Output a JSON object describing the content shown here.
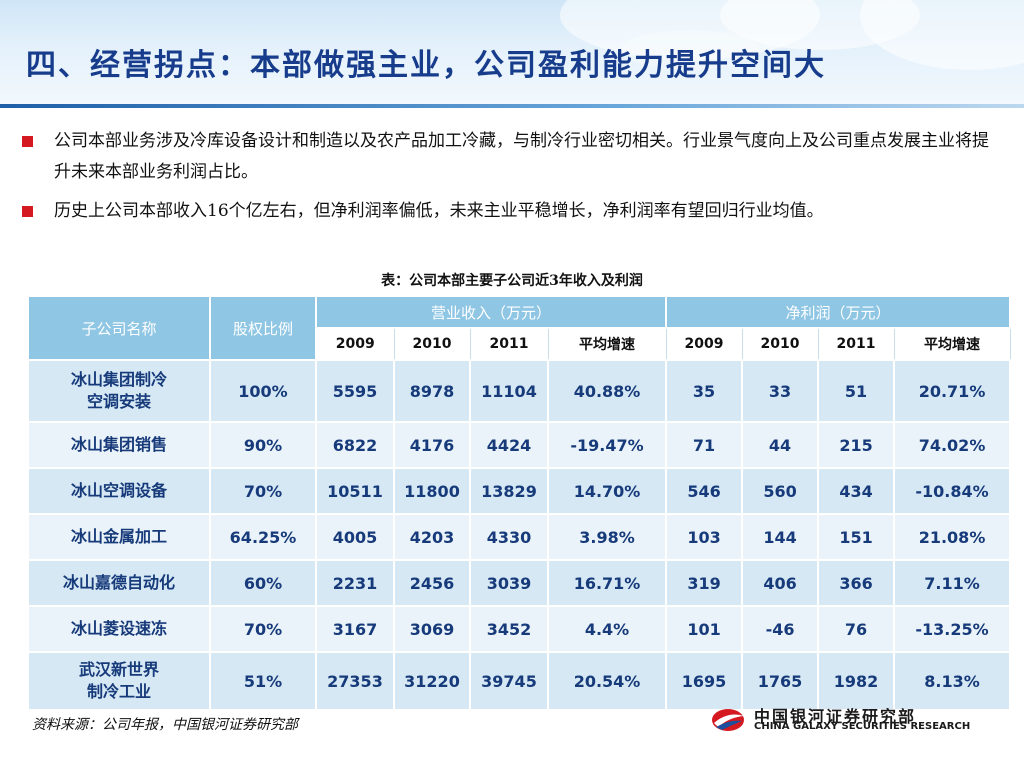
{
  "header": {
    "title": "四、经营拐点：本部做强主业，公司盈利能力提升空间大"
  },
  "bullets": [
    "公司本部业务涉及冷库设备设计和制造以及农产品加工冷藏，与制冷行业密切相关。行业景气度向上及公司重点发展主业将提升未来本部业务利润占比。",
    "历史上公司本部收入16个亿左右，但净利润率偏低，未来主业平稳增长，净利润率有望回归行业均值。"
  ],
  "table": {
    "caption": "表：公司本部主要子公司近3年收入及利润",
    "headers": {
      "company": "子公司名称",
      "share": "股权比例",
      "revenue": "营业收入（万元）",
      "profit": "净利润（万元）"
    },
    "years": [
      "2009",
      "2010",
      "2011",
      "平均增速",
      "2009",
      "2010",
      "2011",
      "平均增速"
    ],
    "rows": [
      {
        "name_line1": "冰山集团制冷",
        "name_line2": "空调安装",
        "share": "100%",
        "r2009": "5595",
        "r2010": "8978",
        "r2011": "11104",
        "r_growth": "40.88%",
        "p2009": "35",
        "p2010": "33",
        "p2011": "51",
        "p_growth": "20.71%"
      },
      {
        "name_line1": "冰山集团销售",
        "name_line2": "",
        "share": "90%",
        "r2009": "6822",
        "r2010": "4176",
        "r2011": "4424",
        "r_growth": "-19.47%",
        "p2009": "71",
        "p2010": "44",
        "p2011": "215",
        "p_growth": "74.02%"
      },
      {
        "name_line1": "冰山空调设备",
        "name_line2": "",
        "share": "70%",
        "r2009": "10511",
        "r2010": "11800",
        "r2011": "13829",
        "r_growth": "14.70%",
        "p2009": "546",
        "p2010": "560",
        "p2011": "434",
        "p_growth": "-10.84%"
      },
      {
        "name_line1": "冰山金属加工",
        "name_line2": "",
        "share": "64.25%",
        "r2009": "4005",
        "r2010": "4203",
        "r2011": "4330",
        "r_growth": "3.98%",
        "p2009": "103",
        "p2010": "144",
        "p2011": "151",
        "p_growth": "21.08%"
      },
      {
        "name_line1": "冰山嘉德自动化",
        "name_line2": "",
        "share": "60%",
        "r2009": "2231",
        "r2010": "2456",
        "r2011": "3039",
        "r_growth": "16.71%",
        "p2009": "319",
        "p2010": "406",
        "p2011": "366",
        "p_growth": "7.11%"
      },
      {
        "name_line1": "冰山菱设速冻",
        "name_line2": "",
        "share": "70%",
        "r2009": "3167",
        "r2010": "3069",
        "r2011": "3452",
        "r_growth": "4.4%",
        "p2009": "101",
        "p2010": "-46",
        "p2011": "76",
        "p_growth": "-13.25%"
      },
      {
        "name_line1": "武汉新世界",
        "name_line2": "制冷工业",
        "share": "51%",
        "r2009": "27353",
        "r2010": "31220",
        "r2011": "39745",
        "r_growth": "20.54%",
        "p2009": "1695",
        "p2010": "1765",
        "p2011": "1982",
        "p_growth": "8.13%"
      }
    ]
  },
  "source": "资料来源：公司年报，中国银河证券研究部",
  "logo": {
    "cn": "中国银河证券研究部",
    "en": "CHINA GALAXY SECURITIES RESEARCH",
    "icon": "galaxy-logo-icon"
  },
  "colors": {
    "title": "#173c8c",
    "header_cell": "#8fc6e4",
    "row_dark": "#d5e8f4",
    "row_light": "#eaf3f9",
    "bullet": "#d51920",
    "logo_red": "#d51920"
  }
}
